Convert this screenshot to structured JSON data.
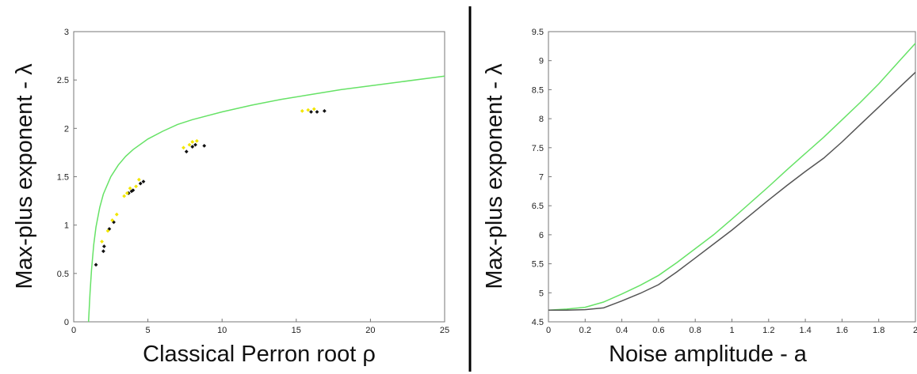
{
  "chart_data": [
    {
      "type": "scatter",
      "title": "",
      "xlabel": "Classical Perron root ρ",
      "ylabel": "Max-plus exponent - λ",
      "xlim": [
        0,
        25
      ],
      "ylim": [
        0,
        3
      ],
      "xticks": [
        "0",
        "5",
        "10",
        "15",
        "20",
        "25"
      ],
      "yticks": [
        "0",
        "0.5",
        "1",
        "1.5",
        "2",
        "2.5",
        "3"
      ],
      "grid": false,
      "legend": "none",
      "colors": {
        "curve": "#66e266",
        "series_a": "#111111",
        "series_b": "#f2e600"
      },
      "curve": {
        "x": [
          1.0,
          1.1,
          1.2,
          1.35,
          1.5,
          1.75,
          2,
          2.5,
          3,
          3.5,
          4,
          5,
          6,
          7,
          8,
          10,
          12,
          14,
          16,
          18,
          20,
          22,
          25
        ],
        "y": [
          0.0,
          0.3,
          0.54,
          0.8,
          0.98,
          1.18,
          1.32,
          1.5,
          1.62,
          1.71,
          1.78,
          1.89,
          1.97,
          2.04,
          2.09,
          2.17,
          2.24,
          2.3,
          2.35,
          2.4,
          2.44,
          2.48,
          2.54
        ]
      },
      "series": [
        {
          "points": [
            [
              1.5,
              0.59
            ],
            [
              2.0,
              0.73
            ],
            [
              2.05,
              0.78
            ],
            [
              2.4,
              0.96
            ],
            [
              2.7,
              1.03
            ],
            [
              3.7,
              1.33
            ],
            [
              3.9,
              1.35
            ],
            [
              4.0,
              1.36
            ],
            [
              4.5,
              1.43
            ],
            [
              4.7,
              1.45
            ],
            [
              7.6,
              1.76
            ],
            [
              8.0,
              1.81
            ],
            [
              8.2,
              1.83
            ],
            [
              8.8,
              1.82
            ],
            [
              16.0,
              2.17
            ],
            [
              16.4,
              2.17
            ],
            [
              16.9,
              2.18
            ]
          ]
        },
        {
          "points": [
            [
              1.9,
              0.83
            ],
            [
              2.3,
              0.94
            ],
            [
              2.6,
              1.05
            ],
            [
              2.9,
              1.11
            ],
            [
              3.4,
              1.3
            ],
            [
              3.6,
              1.33
            ],
            [
              3.8,
              1.38
            ],
            [
              4.2,
              1.4
            ],
            [
              4.4,
              1.47
            ],
            [
              7.4,
              1.8
            ],
            [
              7.8,
              1.83
            ],
            [
              8.0,
              1.86
            ],
            [
              8.3,
              1.87
            ],
            [
              15.4,
              2.18
            ],
            [
              15.8,
              2.19
            ],
            [
              16.2,
              2.2
            ]
          ]
        }
      ]
    },
    {
      "type": "line",
      "title": "",
      "xlabel": "Noise amplitude - a",
      "ylabel": "Max-plus exponent - λ",
      "xlim": [
        0,
        2
      ],
      "ylim": [
        4.5,
        9.5
      ],
      "xticks": [
        "0",
        "0.2",
        "0.4",
        "0.6",
        "0.8",
        "1",
        "1.2",
        "1.4",
        "1.6",
        "1.8",
        "2"
      ],
      "yticks": [
        "4.5",
        "5",
        "5.5",
        "6",
        "6.5",
        "7",
        "7.5",
        "8",
        "8.5",
        "9",
        "9.5"
      ],
      "grid": false,
      "legend": "none",
      "x": [
        0,
        0.1,
        0.2,
        0.3,
        0.4,
        0.5,
        0.6,
        0.7,
        0.8,
        0.9,
        1.0,
        1.1,
        1.2,
        1.3,
        1.4,
        1.5,
        1.6,
        1.7,
        1.8,
        1.9,
        2.0
      ],
      "series": [
        {
          "color": "#66e266",
          "values": [
            4.7,
            4.72,
            4.75,
            4.84,
            4.98,
            5.13,
            5.3,
            5.52,
            5.76,
            6.0,
            6.27,
            6.55,
            6.83,
            7.12,
            7.4,
            7.68,
            7.98,
            8.28,
            8.6,
            8.95,
            9.3
          ]
        },
        {
          "color": "#555555",
          "values": [
            4.7,
            4.7,
            4.71,
            4.74,
            4.86,
            4.99,
            5.14,
            5.36,
            5.6,
            5.84,
            6.08,
            6.34,
            6.6,
            6.85,
            7.09,
            7.32,
            7.6,
            7.9,
            8.2,
            8.5,
            8.8
          ]
        }
      ]
    }
  ]
}
